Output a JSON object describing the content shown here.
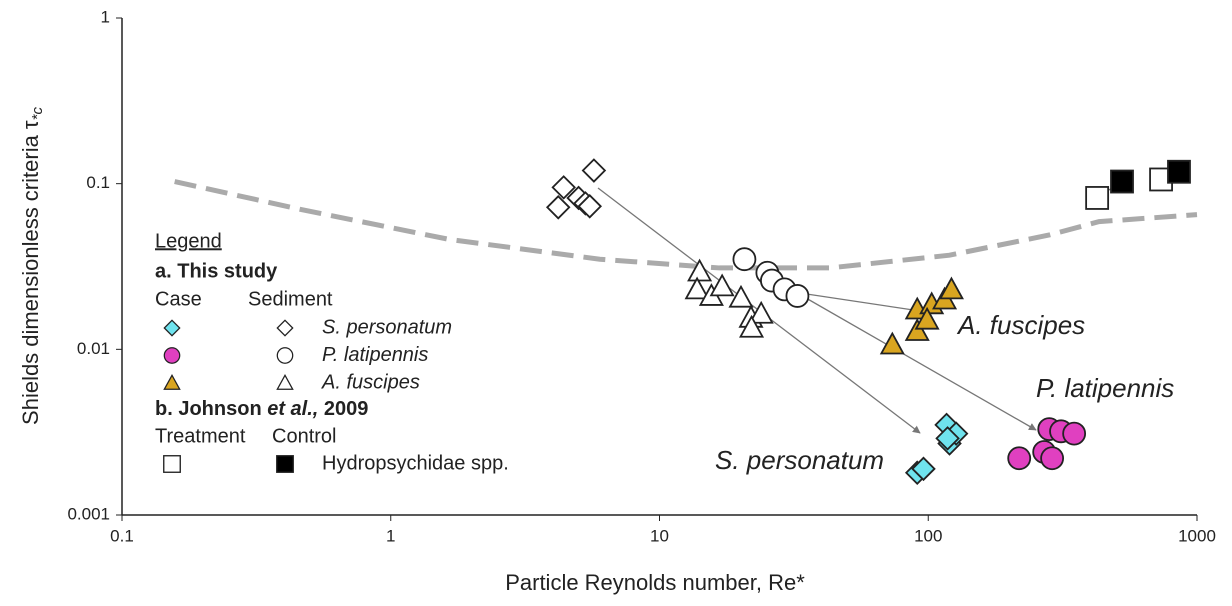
{
  "chart_data": {
    "type": "scatter",
    "log_x": true,
    "log_y": true,
    "xlabel": "Particle Reynolds number, Re*",
    "ylabel": {
      "text": "Shields dimensionless criteria τ",
      "subscript": "*c"
    },
    "xlim": [
      0.1,
      1000
    ],
    "xticks": [
      0.1,
      1,
      10,
      100,
      1000
    ],
    "ylim": [
      0.001,
      1
    ],
    "yticks": [
      0.001,
      0.01,
      0.1,
      1
    ],
    "curve": {
      "color": "#aaaaaa",
      "x": [
        0.157,
        0.46,
        1.66,
        6.0,
        16.7,
        42.9,
        120,
        282,
        432,
        1000
      ],
      "values": [
        0.103,
        0.07,
        0.046,
        0.035,
        0.031,
        0.031,
        0.037,
        0.049,
        0.059,
        0.065
      ]
    },
    "series": [
      {
        "marker": "diamond",
        "color": "#6fe3ee",
        "x": [
          91,
          96,
          117,
          120,
          127,
          118
        ],
        "values": [
          0.0018,
          0.0019,
          0.0035,
          0.0027,
          0.0031,
          0.0029
        ]
      },
      {
        "marker": "diamond",
        "color": "#ffffff",
        "x": [
          4.4,
          4.2,
          5.7,
          5.0,
          5.3,
          5.5
        ],
        "values": [
          0.095,
          0.072,
          0.12,
          0.082,
          0.076,
          0.073
        ]
      },
      {
        "marker": "circle",
        "color": "#e040c0",
        "x": [
          218,
          270,
          282,
          312,
          349,
          289
        ],
        "values": [
          0.0022,
          0.0024,
          0.0033,
          0.0032,
          0.0031,
          0.0022
        ]
      },
      {
        "marker": "circle",
        "color": "#ffffff",
        "x": [
          20.7,
          25.2,
          26.2,
          29.2,
          32.6
        ],
        "values": [
          0.035,
          0.029,
          0.026,
          0.023,
          0.021
        ]
      },
      {
        "marker": "triangle",
        "color": "#d9a520",
        "x": [
          73.5,
          91,
          91,
          103,
          99,
          115,
          122
        ],
        "values": [
          0.0107,
          0.0129,
          0.0174,
          0.0187,
          0.0151,
          0.02,
          0.023
        ]
      },
      {
        "marker": "triangle",
        "color": "#ffffff",
        "x": [
          14.1,
          13.8,
          15.6,
          17.1,
          20.1,
          21.9,
          23.9,
          22.0
        ],
        "values": [
          0.0295,
          0.023,
          0.021,
          0.024,
          0.0205,
          0.0155,
          0.0164,
          0.0135
        ]
      },
      {
        "marker": "square",
        "color": "#ffffff",
        "x": [
          425,
          735
        ],
        "values": [
          0.082,
          0.106
        ]
      },
      {
        "marker": "square",
        "color": "#000000",
        "x": [
          526,
          857
        ],
        "values": [
          0.103,
          0.118
        ]
      }
    ],
    "annotations": [
      "A. fuscipes",
      "P. latipennis",
      "S. personatum"
    ],
    "legend": {
      "title": "Legend",
      "section_a": "a. This study",
      "case": "Case",
      "sediment": "Sediment",
      "species": [
        "S. personatum",
        "P. latipennis",
        "A. fuscipes"
      ],
      "section_b": [
        "b. Johnson ",
        "et al.,",
        " 2009"
      ],
      "treatment": "Treatment",
      "control": "Control",
      "johnson_label": "Hydropsychidae spp."
    }
  }
}
